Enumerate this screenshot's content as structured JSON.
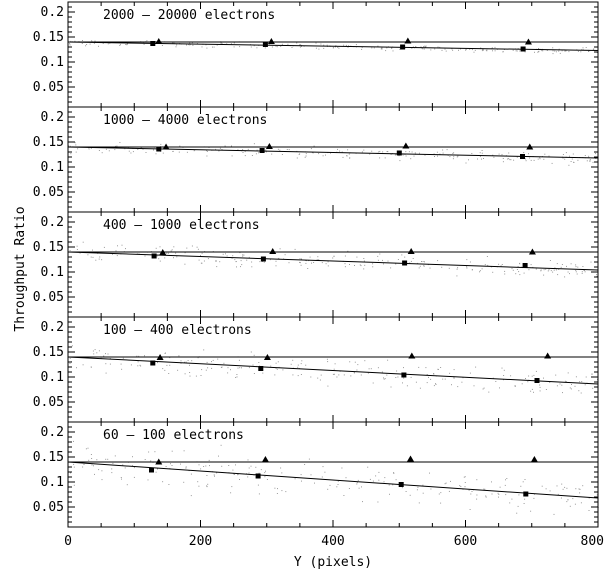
{
  "chart_data": {
    "type": "scatter",
    "xlabel": "Y (pixels)",
    "ylabel": "Throughput Ratio",
    "xlim": [
      0,
      800
    ],
    "ylim": [
      0.01,
      0.22
    ],
    "xticks": [
      "0",
      "200",
      "400",
      "600",
      "800"
    ],
    "yticks": [
      "0.05",
      "0.1",
      "0.15",
      "0.2"
    ],
    "grid": false,
    "panels": [
      {
        "title": "2000 – 20000 electrons",
        "triangles": [
          {
            "x": 137,
            "y": 0.141
          },
          {
            "x": 307,
            "y": 0.141
          },
          {
            "x": 513,
            "y": 0.142
          },
          {
            "x": 695,
            "y": 0.14
          }
        ],
        "squares": [
          {
            "x": 128,
            "y": 0.137
          },
          {
            "x": 298,
            "y": 0.135
          },
          {
            "x": 505,
            "y": 0.13
          },
          {
            "x": 687,
            "y": 0.126
          }
        ],
        "horizontal_line": 0.14,
        "fit_line": [
          [
            0,
            0.14
          ],
          [
            800,
            0.123
          ]
        ],
        "noise_spread": 0.01
      },
      {
        "title": "1000 – 4000 electrons",
        "triangles": [
          {
            "x": 148,
            "y": 0.14
          },
          {
            "x": 304,
            "y": 0.141
          },
          {
            "x": 510,
            "y": 0.142
          },
          {
            "x": 697,
            "y": 0.14
          }
        ],
        "squares": [
          {
            "x": 137,
            "y": 0.136
          },
          {
            "x": 293,
            "y": 0.133
          },
          {
            "x": 500,
            "y": 0.128
          },
          {
            "x": 686,
            "y": 0.121
          }
        ],
        "horizontal_line": 0.14,
        "fit_line": [
          [
            0,
            0.14
          ],
          [
            800,
            0.118
          ]
        ],
        "noise_spread": 0.02
      },
      {
        "title": "400 – 1000 electrons",
        "triangles": [
          {
            "x": 143,
            "y": 0.139
          },
          {
            "x": 309,
            "y": 0.141
          },
          {
            "x": 518,
            "y": 0.141
          },
          {
            "x": 701,
            "y": 0.14
          }
        ],
        "squares": [
          {
            "x": 130,
            "y": 0.132
          },
          {
            "x": 295,
            "y": 0.126
          },
          {
            "x": 508,
            "y": 0.118
          },
          {
            "x": 690,
            "y": 0.113
          }
        ],
        "horizontal_line": 0.14,
        "fit_line": [
          [
            0,
            0.14
          ],
          [
            800,
            0.104
          ]
        ],
        "noise_spread": 0.03
      },
      {
        "title": "100 – 400 electrons",
        "triangles": [
          {
            "x": 139,
            "y": 0.139
          },
          {
            "x": 301,
            "y": 0.139
          },
          {
            "x": 519,
            "y": 0.142
          },
          {
            "x": 724,
            "y": 0.142
          }
        ],
        "squares": [
          {
            "x": 128,
            "y": 0.128
          },
          {
            "x": 291,
            "y": 0.117
          },
          {
            "x": 507,
            "y": 0.104
          },
          {
            "x": 708,
            "y": 0.093
          }
        ],
        "horizontal_line": 0.14,
        "fit_line": [
          [
            0,
            0.14
          ],
          [
            800,
            0.086
          ]
        ],
        "noise_spread": 0.045
      },
      {
        "title": "60 – 100 electrons",
        "triangles": [
          {
            "x": 137,
            "y": 0.14
          },
          {
            "x": 298,
            "y": 0.145
          },
          {
            "x": 517,
            "y": 0.146
          },
          {
            "x": 704,
            "y": 0.145
          }
        ],
        "squares": [
          {
            "x": 126,
            "y": 0.124
          },
          {
            "x": 287,
            "y": 0.112
          },
          {
            "x": 503,
            "y": 0.095
          },
          {
            "x": 691,
            "y": 0.076
          }
        ],
        "horizontal_line": 0.14,
        "fit_line": [
          [
            0,
            0.14
          ],
          [
            800,
            0.068
          ]
        ],
        "noise_spread": 0.065
      }
    ]
  }
}
